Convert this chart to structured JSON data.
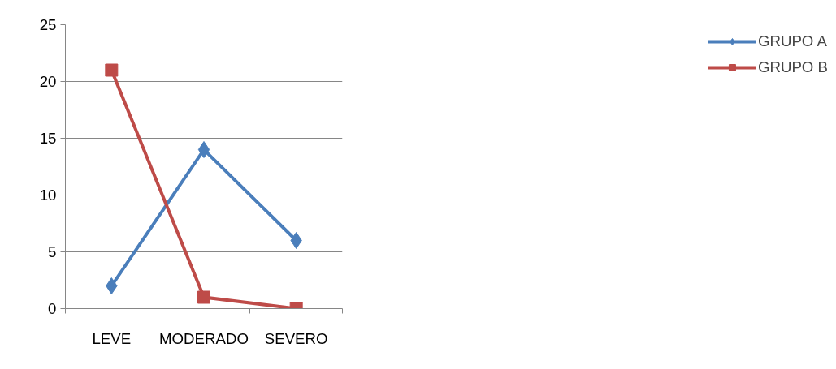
{
  "chart_data": {
    "type": "line",
    "categories": [
      "LEVE",
      "MODERADO",
      "SEVERO"
    ],
    "series": [
      {
        "name": "GRUPO A",
        "color": "#4a7ebb",
        "values": [
          2,
          14,
          6
        ],
        "marker": "diamond"
      },
      {
        "name": "GRUPO B",
        "color": "#be4b48",
        "values": [
          21,
          1,
          0
        ],
        "marker": "square"
      }
    ],
    "ylim": [
      0,
      25
    ],
    "yticks": [
      0,
      5,
      10,
      15,
      20,
      25
    ],
    "grid": "y",
    "legend": "right",
    "line_style": "solid"
  }
}
